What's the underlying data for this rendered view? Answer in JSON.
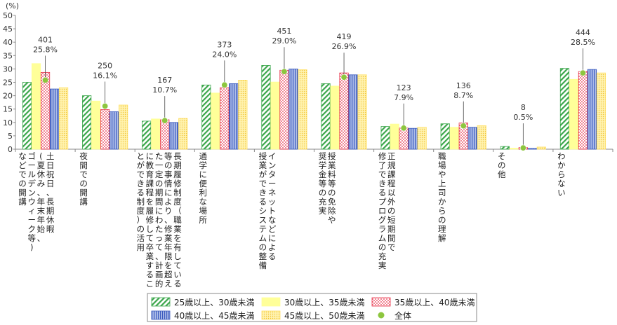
{
  "chart_data": {
    "type": "bar",
    "unit_label": "(%)",
    "ylim": [
      0,
      50
    ],
    "yticks": [
      0,
      5,
      10,
      15,
      20,
      25,
      30,
      35,
      40,
      45,
      50
    ],
    "grid": false,
    "legend_position": "bottom-right",
    "categories": [
      "土日祝日、長期休暇\n(夏休み、年末年始、\nゴールデンウィーク等)\nなどでの開講",
      "夜間での開講",
      "長期履修制度（職業を有している\n等の事情により、修業年限を超え\nた一定の期間にわたって、計画的\nに教育課程を履修して卒業するこ\nとができる制度）の活用",
      "通学に便利な場所",
      "インターネットなどによる\n授業ができるシステムの整備",
      "授業料等の免除や\n奨学金等の充実",
      "正規課程以外の短期間で\n修了できるプログラムの充実",
      "職場や上司からの理解",
      "その他",
      "わからない"
    ],
    "series": [
      {
        "name": "25歳以上、30歳未満",
        "pattern": "diagonal",
        "color": "#3aa64a",
        "values": [
          25.0,
          20.0,
          10.5,
          24.0,
          31.3,
          24.5,
          8.5,
          9.5,
          1.0,
          30.2
        ]
      },
      {
        "name": "30歳以上、35歳未満",
        "pattern": "solid",
        "color": "#ffff99",
        "values": [
          32.0,
          18.0,
          11.3,
          21.0,
          25.1,
          23.6,
          9.4,
          8.2,
          0.4,
          26.1
        ]
      },
      {
        "name": "35歳以上、40歳未満",
        "pattern": "dots",
        "color": "#e8334a",
        "values": [
          28.7,
          14.8,
          11.0,
          23.0,
          29.5,
          28.5,
          7.9,
          9.8,
          0.6,
          29.0
        ]
      },
      {
        "name": "40歳以上、45歳未満",
        "pattern": "vertical",
        "color": "#3b5bbf",
        "values": [
          22.5,
          14.0,
          10.0,
          24.5,
          30.0,
          27.8,
          7.8,
          8.2,
          0.3,
          29.8
        ]
      },
      {
        "name": "45歳以上、50歳未満",
        "pattern": "fine",
        "color": "#ffe066",
        "values": [
          23.0,
          16.5,
          11.5,
          25.8,
          29.7,
          27.8,
          8.2,
          8.8,
          0.8,
          28.5
        ]
      }
    ],
    "overall": {
      "name": "全体",
      "color": "#8dc63f",
      "counts": [
        "401",
        "250",
        "167",
        "373",
        "451",
        "419",
        "123",
        "136",
        "8",
        "444"
      ],
      "percents": [
        "25.8%",
        "16.1%",
        "10.7%",
        "24.0%",
        "29.0%",
        "26.9%",
        "7.9%",
        "8.7%",
        "0.5%",
        "28.5%"
      ],
      "values": [
        25.8,
        16.1,
        10.7,
        24.0,
        29.0,
        26.9,
        7.9,
        8.7,
        0.5,
        28.5
      ]
    }
  }
}
